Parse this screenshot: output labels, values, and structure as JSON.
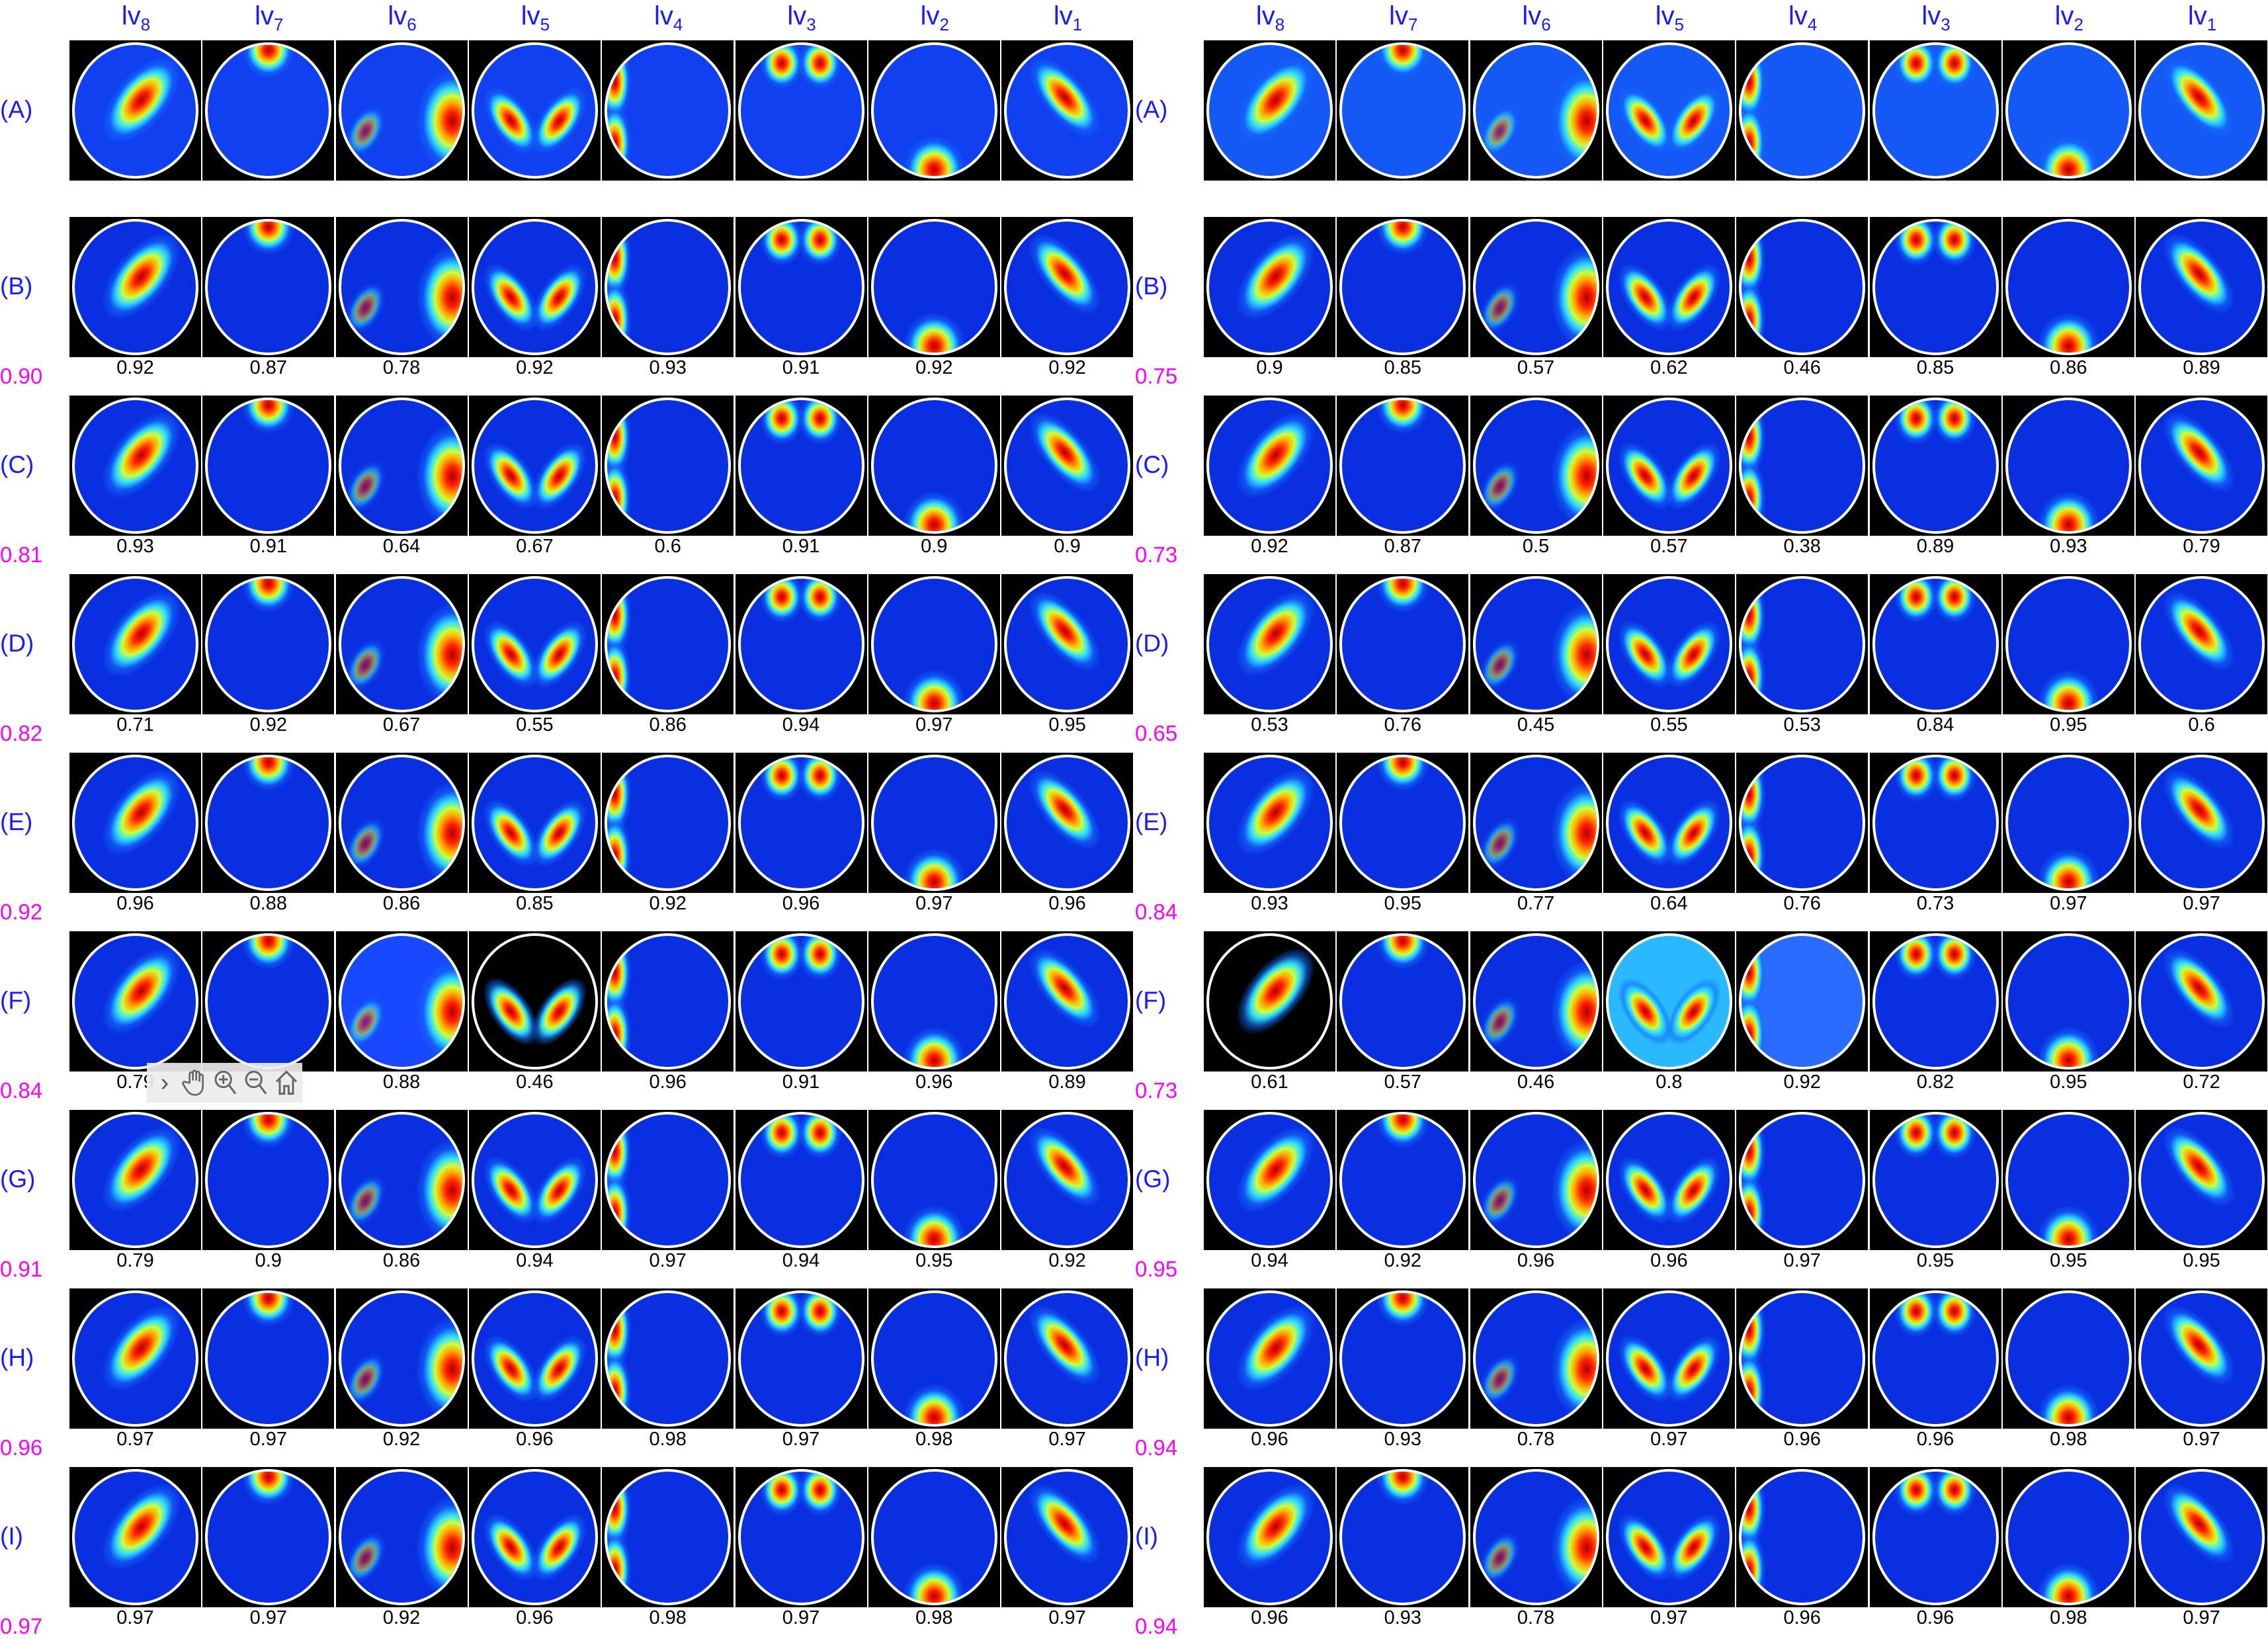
{
  "header": {
    "columns": [
      {
        "base": "lv",
        "sub": "8"
      },
      {
        "base": "lv",
        "sub": "7"
      },
      {
        "base": "lv",
        "sub": "6"
      },
      {
        "base": "lv",
        "sub": "5"
      },
      {
        "base": "lv",
        "sub": "4"
      },
      {
        "base": "lv",
        "sub": "3"
      },
      {
        "base": "lv",
        "sub": "2"
      },
      {
        "base": "lv",
        "sub": "1"
      }
    ]
  },
  "colors": {
    "row_label": "#1a1aff",
    "score": "#ff00ff",
    "header": "#1a1aff",
    "number": "#000000"
  },
  "panels": [
    {
      "rows": [
        {
          "label": "(A)"
        },
        {
          "label": "(B)",
          "values": [
            "0.92",
            "0.87",
            "0.78",
            "0.92",
            "0.93",
            "0.91",
            "0.92",
            "0.92"
          ],
          "score": "0.90"
        },
        {
          "label": "(C)",
          "values": [
            "0.93",
            "0.91",
            "0.64",
            "0.67",
            "0.6",
            "0.91",
            "0.9",
            "0.9"
          ],
          "score": "0.81"
        },
        {
          "label": "(D)",
          "values": [
            "0.71",
            "0.92",
            "0.67",
            "0.55",
            "0.86",
            "0.94",
            "0.97",
            "0.95"
          ],
          "score": "0.82"
        },
        {
          "label": "(E)",
          "values": [
            "0.96",
            "0.88",
            "0.86",
            "0.85",
            "0.92",
            "0.96",
            "0.97",
            "0.96"
          ],
          "score": "0.92"
        },
        {
          "label": "(F)",
          "values": [
            "0.79",
            "",
            "0.88",
            "0.46",
            "0.96",
            "0.91",
            "0.96",
            "0.89"
          ],
          "score": "0.84"
        },
        {
          "label": "(G)",
          "values": [
            "0.79",
            "0.9",
            "0.86",
            "0.94",
            "0.97",
            "0.94",
            "0.95",
            "0.92"
          ],
          "score": "0.91"
        },
        {
          "label": "(H)",
          "values": [
            "0.97",
            "0.97",
            "0.92",
            "0.96",
            "0.98",
            "0.97",
            "0.98",
            "0.97"
          ],
          "score": "0.96"
        },
        {
          "label": "(I)",
          "values": [
            "0.97",
            "0.97",
            "0.92",
            "0.96",
            "0.98",
            "0.97",
            "0.98",
            "0.97"
          ],
          "score": "0.97"
        }
      ]
    },
    {
      "rows": [
        {
          "label": "(A)"
        },
        {
          "label": "(B)",
          "values": [
            "0.9",
            "0.85",
            "0.57",
            "0.62",
            "0.46",
            "0.85",
            "0.86",
            "0.89"
          ],
          "score": "0.75"
        },
        {
          "label": "(C)",
          "values": [
            "0.92",
            "0.87",
            "0.5",
            "0.57",
            "0.38",
            "0.89",
            "0.93",
            "0.79"
          ],
          "score": "0.73"
        },
        {
          "label": "(D)",
          "values": [
            "0.53",
            "0.76",
            "0.45",
            "0.55",
            "0.53",
            "0.84",
            "0.95",
            "0.6"
          ],
          "score": "0.65"
        },
        {
          "label": "(E)",
          "values": [
            "0.93",
            "0.95",
            "0.77",
            "0.64",
            "0.76",
            "0.73",
            "0.97",
            "0.97"
          ],
          "score": "0.84"
        },
        {
          "label": "(F)",
          "values": [
            "0.61",
            "0.57",
            "0.46",
            "0.8",
            "0.92",
            "0.82",
            "0.95",
            "0.72"
          ],
          "score": "0.73"
        },
        {
          "label": "(G)",
          "values": [
            "0.94",
            "0.92",
            "0.96",
            "0.96",
            "0.97",
            "0.95",
            "0.95",
            "0.95"
          ],
          "score": "0.95"
        },
        {
          "label": "(H)",
          "values": [
            "0.96",
            "0.93",
            "0.78",
            "0.97",
            "0.96",
            "0.96",
            "0.98",
            "0.97"
          ],
          "score": "0.94"
        },
        {
          "label": "(I)",
          "values": [
            "0.96",
            "0.93",
            "0.78",
            "0.97",
            "0.96",
            "0.96",
            "0.98",
            "0.97"
          ],
          "score": "0.94"
        }
      ]
    }
  ],
  "toolbar": {
    "icons": [
      "chevron-right-icon",
      "pan-hand-icon",
      "zoom-in-icon",
      "zoom-out-icon",
      "home-icon"
    ]
  }
}
